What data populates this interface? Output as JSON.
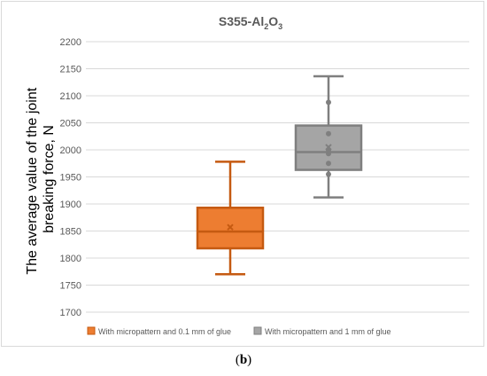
{
  "chart_data": {
    "type": "box",
    "title_main": "S355-Al",
    "title_sub1": "2",
    "title_mid": "O",
    "title_sub2": "3",
    "ylabel_line1": "The average value of the joint",
    "ylabel_line2": "breaking force, N",
    "ylim": [
      1700,
      2200
    ],
    "yticks": [
      1700,
      1750,
      1800,
      1850,
      1900,
      1950,
      2000,
      2050,
      2100,
      2150,
      2200
    ],
    "grid": true,
    "legend_position": "bottom",
    "series": [
      {
        "name": "With micropattern and 0.1 mm of glue",
        "color": "#ed7d31",
        "stroke": "#c55a11",
        "min": 1770,
        "q1": 1818,
        "median": 1849,
        "q3": 1893,
        "max": 1978,
        "mean": 1857,
        "points": []
      },
      {
        "name": "With micropattern and 1 mm of glue",
        "color": "#a5a5a5",
        "stroke": "#7f7f7f",
        "min": 1912,
        "q1": 1963,
        "median": 1996,
        "q3": 2045,
        "max": 2136,
        "mean": 2005,
        "points": [
          1955,
          1975,
          1993,
          2000,
          2030,
          2088
        ]
      }
    ]
  },
  "caption": {
    "open": "(",
    "letter": "b",
    "close": ")"
  }
}
